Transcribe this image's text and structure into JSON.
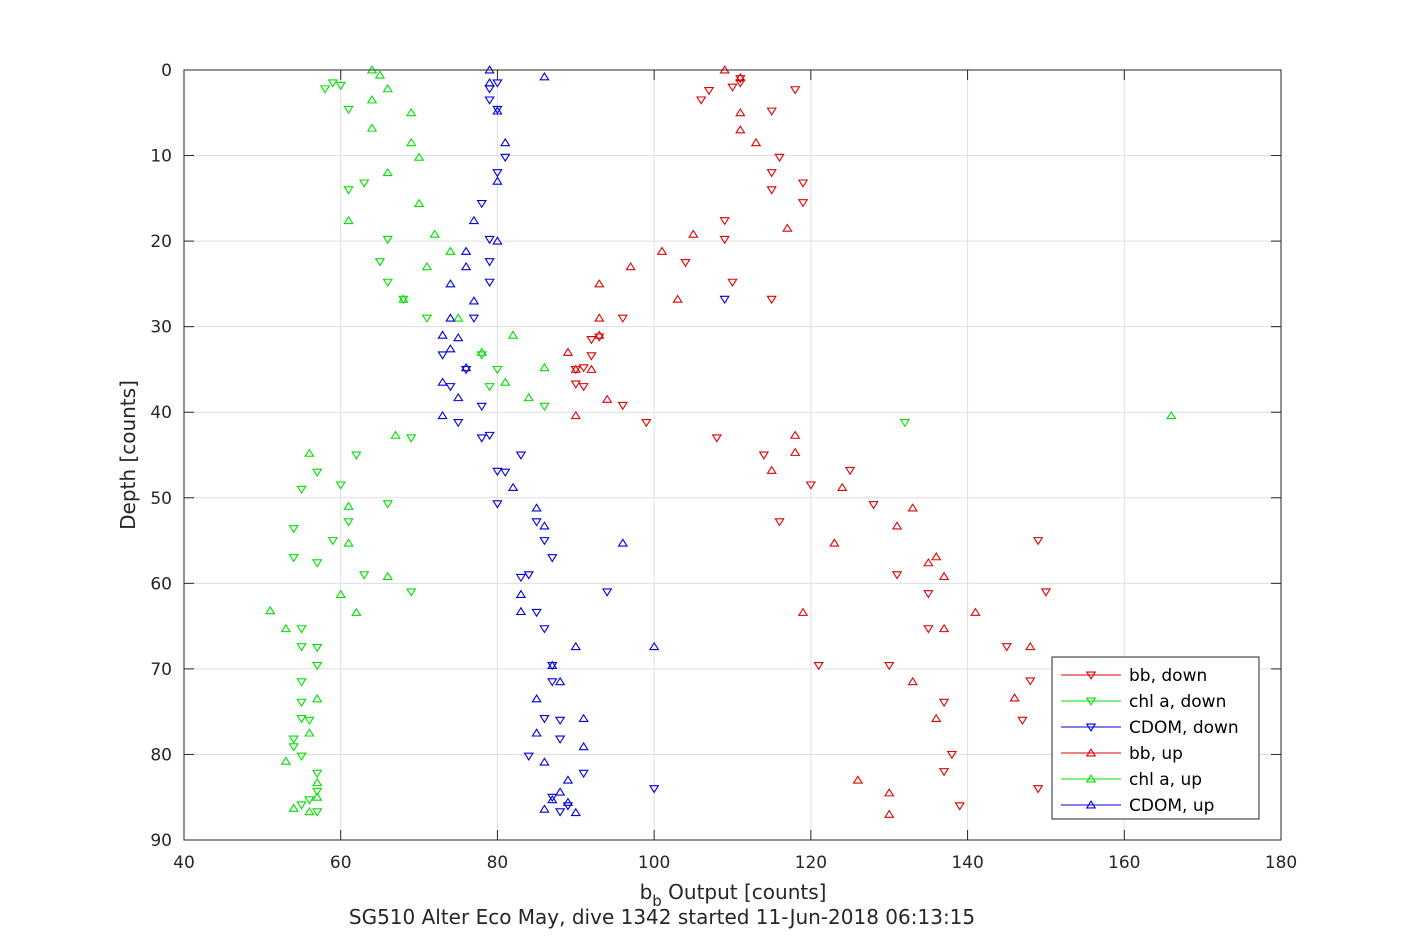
{
  "chart_data": {
    "type": "scatter",
    "title": "SG510 Alter Eco May, dive 1342 started 11-Jun-2018 06:13:15",
    "xlabel_main": "b",
    "xlabel_sub": "b",
    "xlabel_rest": " Output [counts]",
    "ylabel": "Depth [counts]",
    "xlim": [
      40,
      180
    ],
    "ylim": [
      0,
      90
    ],
    "y_reversed": true,
    "grid": true,
    "x_ticks": [
      40,
      60,
      80,
      100,
      120,
      140,
      160,
      180
    ],
    "y_ticks": [
      0,
      10,
      20,
      30,
      40,
      50,
      60,
      70,
      80,
      90
    ],
    "legend_position": "bottom-right",
    "series": [
      {
        "name": "bb, down",
        "color": "#e00000",
        "marker": "triangle-down",
        "points": [
          [
            111,
            1
          ],
          [
            111,
            1.5
          ],
          [
            110,
            2
          ],
          [
            118,
            2.3
          ],
          [
            107,
            2.4
          ],
          [
            106,
            3.5
          ],
          [
            115,
            4.8
          ],
          [
            116,
            10.2
          ],
          [
            115,
            12
          ],
          [
            119,
            13.2
          ],
          [
            115,
            14
          ],
          [
            119,
            15.5
          ],
          [
            109,
            17.6
          ],
          [
            109,
            19.8
          ],
          [
            104,
            22.5
          ],
          [
            110,
            24.8
          ],
          [
            115,
            26.8
          ],
          [
            96,
            29
          ],
          [
            92,
            31.5
          ],
          [
            93,
            31.2
          ],
          [
            92,
            33.4
          ],
          [
            91,
            34.8
          ],
          [
            90,
            35
          ],
          [
            90,
            36.7
          ],
          [
            91,
            37
          ],
          [
            96,
            39.2
          ],
          [
            99,
            41.2
          ],
          [
            108,
            43
          ],
          [
            114,
            45
          ],
          [
            120,
            48.5
          ],
          [
            125,
            46.8
          ],
          [
            128,
            50.8
          ],
          [
            116,
            52.8
          ],
          [
            131,
            59
          ],
          [
            135,
            61.2
          ],
          [
            135,
            65.3
          ],
          [
            145,
            67.4
          ],
          [
            148,
            71.4
          ],
          [
            121,
            69.6
          ],
          [
            130,
            69.6
          ],
          [
            137,
            73.9
          ],
          [
            147,
            76
          ],
          [
            138,
            80
          ],
          [
            137,
            82
          ],
          [
            139,
            86
          ],
          [
            149,
            55
          ],
          [
            150,
            61
          ],
          [
            149,
            84
          ]
        ]
      },
      {
        "name": "chl a, down",
        "color": "#00e000",
        "marker": "triangle-down",
        "points": [
          [
            58,
            2.2
          ],
          [
            59,
            1.5
          ],
          [
            60,
            1.8
          ],
          [
            61,
            4.6
          ],
          [
            63,
            13.2
          ],
          [
            61,
            14
          ],
          [
            66,
            19.8
          ],
          [
            65,
            22.4
          ],
          [
            66,
            24.8
          ],
          [
            68,
            26.8
          ],
          [
            71,
            29
          ],
          [
            78,
            33.3
          ],
          [
            80,
            35
          ],
          [
            79,
            37
          ],
          [
            86,
            39.3
          ],
          [
            69,
            43
          ],
          [
            62,
            45
          ],
          [
            57,
            47
          ],
          [
            55,
            49
          ],
          [
            60,
            48.5
          ],
          [
            66,
            50.7
          ],
          [
            61,
            52.8
          ],
          [
            59,
            55
          ],
          [
            54,
            57
          ],
          [
            57,
            57.6
          ],
          [
            63,
            59
          ],
          [
            69,
            61
          ],
          [
            54,
            53.6
          ],
          [
            55,
            65.3
          ],
          [
            57,
            67.5
          ],
          [
            55,
            67.4
          ],
          [
            57,
            69.6
          ],
          [
            55,
            71.5
          ],
          [
            55,
            73.9
          ],
          [
            56,
            76
          ],
          [
            55,
            75.8
          ],
          [
            54,
            78.2
          ],
          [
            54,
            79.1
          ],
          [
            55,
            80.2
          ],
          [
            57,
            82.2
          ],
          [
            57,
            84.3
          ],
          [
            56,
            85.3
          ],
          [
            55,
            85.9
          ],
          [
            57,
            86.7
          ],
          [
            132,
            41.2
          ]
        ]
      },
      {
        "name": "CDOM, down",
        "color": "#0000e0",
        "marker": "triangle-down",
        "points": [
          [
            79,
            2.2
          ],
          [
            80,
            1.5
          ],
          [
            79,
            3.5
          ],
          [
            80,
            4.6
          ],
          [
            81,
            10.2
          ],
          [
            80,
            12
          ],
          [
            78,
            15.6
          ],
          [
            79,
            19.8
          ],
          [
            79,
            22.4
          ],
          [
            79,
            24.8
          ],
          [
            109,
            26.8
          ],
          [
            77,
            29
          ],
          [
            73,
            33.3
          ],
          [
            76,
            35
          ],
          [
            74,
            37
          ],
          [
            78,
            39.3
          ],
          [
            75,
            41.2
          ],
          [
            78,
            43
          ],
          [
            79,
            42.7
          ],
          [
            83,
            45
          ],
          [
            80,
            46.9
          ],
          [
            81,
            47
          ],
          [
            80,
            50.7
          ],
          [
            85,
            52.8
          ],
          [
            86,
            55
          ],
          [
            87,
            57
          ],
          [
            84,
            59
          ],
          [
            83,
            59.3
          ],
          [
            94,
            61
          ],
          [
            85,
            63.4
          ],
          [
            86,
            65.3
          ],
          [
            87,
            69.6
          ],
          [
            87,
            71.5
          ],
          [
            86,
            75.8
          ],
          [
            88,
            76
          ],
          [
            88,
            78.2
          ],
          [
            84,
            80.2
          ],
          [
            91,
            82.2
          ],
          [
            100,
            84
          ],
          [
            87,
            85
          ],
          [
            89,
            86
          ],
          [
            88,
            86.7
          ]
        ]
      },
      {
        "name": "bb, up",
        "color": "#e00000",
        "marker": "triangle-up",
        "points": [
          [
            109,
            0
          ],
          [
            111,
            0.9
          ],
          [
            111,
            5
          ],
          [
            111,
            7
          ],
          [
            113,
            8.5
          ],
          [
            117,
            18.5
          ],
          [
            105,
            19.2
          ],
          [
            101,
            21.2
          ],
          [
            97,
            23
          ],
          [
            103,
            26.8
          ],
          [
            93,
            25
          ],
          [
            93,
            29
          ],
          [
            93,
            31
          ],
          [
            89,
            33
          ],
          [
            92,
            35
          ],
          [
            90,
            35
          ],
          [
            94,
            38.5
          ],
          [
            90,
            40.4
          ],
          [
            118,
            42.7
          ],
          [
            118,
            44.7
          ],
          [
            115,
            46.8
          ],
          [
            124,
            48.8
          ],
          [
            133,
            51.2
          ],
          [
            131,
            53.3
          ],
          [
            123,
            55.3
          ],
          [
            136,
            56.9
          ],
          [
            137,
            59.2
          ],
          [
            141,
            63.4
          ],
          [
            137,
            65.3
          ],
          [
            148,
            67.4
          ],
          [
            133,
            71.5
          ],
          [
            146,
            73.4
          ],
          [
            136,
            75.8
          ],
          [
            126,
            83
          ],
          [
            130,
            84.5
          ],
          [
            130,
            87
          ],
          [
            119,
            63.4
          ],
          [
            135,
            57.6
          ]
        ]
      },
      {
        "name": "chl a, up",
        "color": "#00e000",
        "marker": "triangle-up",
        "points": [
          [
            64,
            0
          ],
          [
            65,
            0.6
          ],
          [
            66,
            2.2
          ],
          [
            64,
            3.5
          ],
          [
            69,
            5
          ],
          [
            64,
            6.8
          ],
          [
            69,
            8.5
          ],
          [
            70,
            10.2
          ],
          [
            66,
            12
          ],
          [
            70,
            15.6
          ],
          [
            61,
            17.6
          ],
          [
            72,
            19.2
          ],
          [
            74,
            21.2
          ],
          [
            71,
            23
          ],
          [
            68,
            26.8
          ],
          [
            75,
            29
          ],
          [
            82,
            31
          ],
          [
            78,
            33
          ],
          [
            86,
            34.8
          ],
          [
            81,
            36.5
          ],
          [
            84,
            38.3
          ],
          [
            67,
            42.7
          ],
          [
            56,
            44.8
          ],
          [
            61,
            51
          ],
          [
            61,
            55.3
          ],
          [
            66,
            59.2
          ],
          [
            60,
            61.3
          ],
          [
            62,
            63.4
          ],
          [
            51,
            63.2
          ],
          [
            53,
            65.3
          ],
          [
            57,
            73.5
          ],
          [
            56,
            77.5
          ],
          [
            53,
            80.8
          ],
          [
            57,
            83.3
          ],
          [
            57,
            85
          ],
          [
            54,
            86.3
          ],
          [
            56,
            86.7
          ],
          [
            166,
            40.4
          ]
        ]
      },
      {
        "name": "CDOM, up",
        "color": "#0000e0",
        "marker": "triangle-up",
        "points": [
          [
            79,
            0
          ],
          [
            86,
            0.8
          ],
          [
            79,
            1.5
          ],
          [
            80,
            4.8
          ],
          [
            81,
            8.5
          ],
          [
            80,
            13
          ],
          [
            77,
            17.6
          ],
          [
            80,
            20
          ],
          [
            76,
            21.2
          ],
          [
            76,
            23
          ],
          [
            74,
            25
          ],
          [
            77,
            27
          ],
          [
            74,
            29
          ],
          [
            75,
            31.3
          ],
          [
            73,
            31
          ],
          [
            74,
            32.6
          ],
          [
            76,
            34.8
          ],
          [
            73,
            36.5
          ],
          [
            75,
            38.3
          ],
          [
            73,
            40.4
          ],
          [
            82,
            48.8
          ],
          [
            85,
            51.2
          ],
          [
            86,
            53.3
          ],
          [
            96,
            55.3
          ],
          [
            83,
            61.3
          ],
          [
            83,
            63.3
          ],
          [
            90,
            67.4
          ],
          [
            100,
            67.4
          ],
          [
            87,
            69.6
          ],
          [
            88,
            71.5
          ],
          [
            85,
            73.5
          ],
          [
            91,
            75.8
          ],
          [
            85,
            77.5
          ],
          [
            91,
            79.1
          ],
          [
            86,
            80.9
          ],
          [
            89,
            83
          ],
          [
            88,
            84.4
          ],
          [
            87,
            85.3
          ],
          [
            89,
            85.6
          ],
          [
            86,
            86.4
          ],
          [
            90,
            86.8
          ]
        ]
      }
    ]
  }
}
